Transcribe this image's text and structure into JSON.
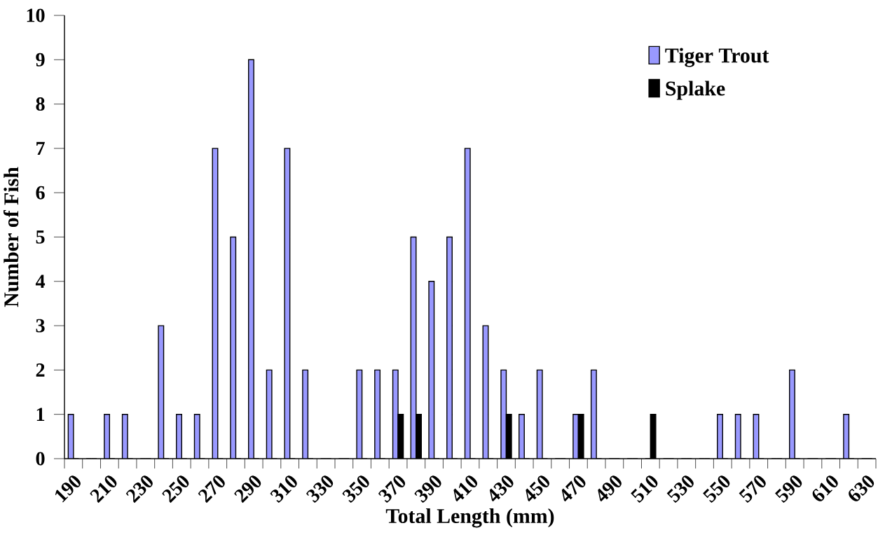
{
  "chart_data": {
    "type": "bar",
    "xlabel": "Total Length (mm)",
    "ylabel": "Number of Fish",
    "categories": [
      "190",
      null,
      "210",
      null,
      "230",
      null,
      "250",
      null,
      "270",
      null,
      "290",
      null,
      "310",
      null,
      "330",
      null,
      "350",
      null,
      "370",
      null,
      "390",
      null,
      "410",
      null,
      "430",
      null,
      "450",
      null,
      "470",
      null,
      "490",
      null,
      "510",
      null,
      "530",
      null,
      "550",
      null,
      "570",
      null,
      "590",
      null,
      "610",
      null,
      "630"
    ],
    "series": [
      {
        "name": "Tiger Trout",
        "color": "#9999ff",
        "values": [
          1,
          0,
          1,
          1,
          0,
          3,
          1,
          1,
          7,
          5,
          9,
          2,
          7,
          2,
          0,
          0,
          2,
          2,
          2,
          5,
          4,
          5,
          7,
          3,
          2,
          1,
          2,
          0,
          1,
          2,
          0,
          0,
          0,
          0,
          0,
          0,
          1,
          1,
          1,
          0,
          2,
          0,
          0,
          1,
          0
        ]
      },
      {
        "name": "Splake",
        "color": "#000000",
        "values": [
          0,
          0,
          0,
          0,
          0,
          0,
          0,
          0,
          0,
          0,
          0,
          0,
          0,
          0,
          0,
          0,
          0,
          0,
          1,
          1,
          0,
          0,
          0,
          0,
          1,
          0,
          0,
          0,
          1,
          0,
          0,
          0,
          1,
          0,
          0,
          0,
          0,
          0,
          0,
          0,
          0,
          0,
          0,
          0,
          0
        ]
      }
    ],
    "ylim": [
      0,
      10
    ],
    "yticks": [
      0,
      1,
      2,
      3,
      4,
      5,
      6,
      7,
      8,
      9,
      10
    ],
    "legend": "top right"
  }
}
